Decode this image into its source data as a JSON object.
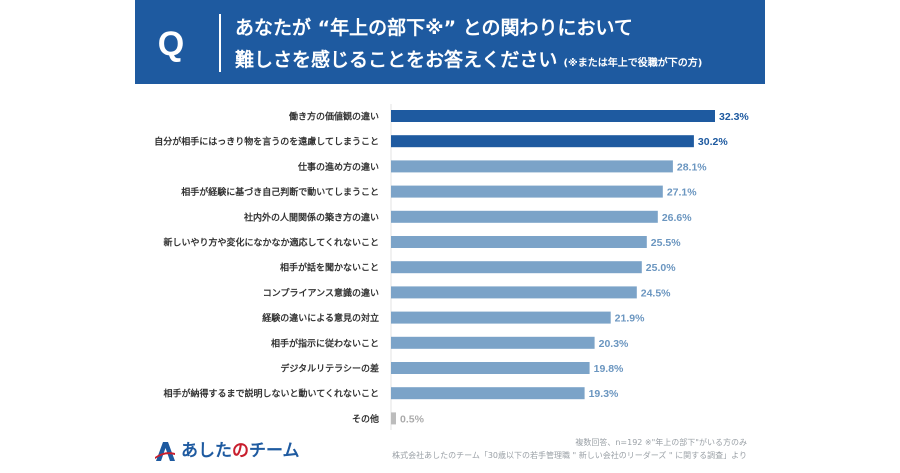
{
  "header": {
    "q_letter": "Q",
    "title_line1": "あなたが “年上の部下※” との関わりにおいて",
    "title_line2": "難しさを感じることをお答えください",
    "title_note": "(※または年上で役職が下の方)"
  },
  "chart_data": {
    "type": "bar",
    "orientation": "horizontal",
    "categories": [
      "働き方の価値観の違い",
      "自分が相手にはっきり物を言うのを遠慮してしまうこと",
      "仕事の進め方の違い",
      "相手が経験に基づき自己判断で動いてしまうこと",
      "社内外の人間関係の築き方の違い",
      "新しいやり方や変化になかなか適応してくれないこと",
      "相手が話を聞かないこと",
      "コンプライアンス意識の違い",
      "経験の違いによる意見の対立",
      "相手が指示に従わないこと",
      "デジタルリテラシーの差",
      "相手が納得するまで説明しないと動いてくれないこと",
      "その他"
    ],
    "values": [
      32.3,
      30.2,
      28.1,
      27.1,
      26.6,
      25.5,
      25.0,
      24.5,
      21.9,
      20.3,
      19.8,
      19.3,
      0.5
    ],
    "value_labels": [
      "32.3%",
      "30.2%",
      "28.1%",
      "27.1%",
      "26.6%",
      "25.5%",
      "25.0%",
      "24.5%",
      "21.9%",
      "20.3%",
      "19.8%",
      "19.3%",
      "0.5%"
    ],
    "xlim": [
      0,
      32.3
    ],
    "grid": false,
    "colors": {
      "top": "#1e5aa0",
      "other": "#7ba3c8",
      "misc": "#bcbcbc",
      "top_label": "#1e5aa0",
      "other_label": "#6b96c0",
      "misc_label": "#aaaaaa"
    }
  },
  "footer": {
    "logo_main": "あした",
    "logo_no": "の",
    "logo_tail": "チーム",
    "note1": "複数回答、n=192 ※\"年上の部下\"がいる方のみ",
    "note2": "株式会社あしたのチーム「30歳以下の若手管理職 \" 新しい会社のリーダーズ \" に関する調査」より"
  },
  "colors": {
    "header_bg": "#1e5aa0",
    "header_text": "#ffffff"
  }
}
